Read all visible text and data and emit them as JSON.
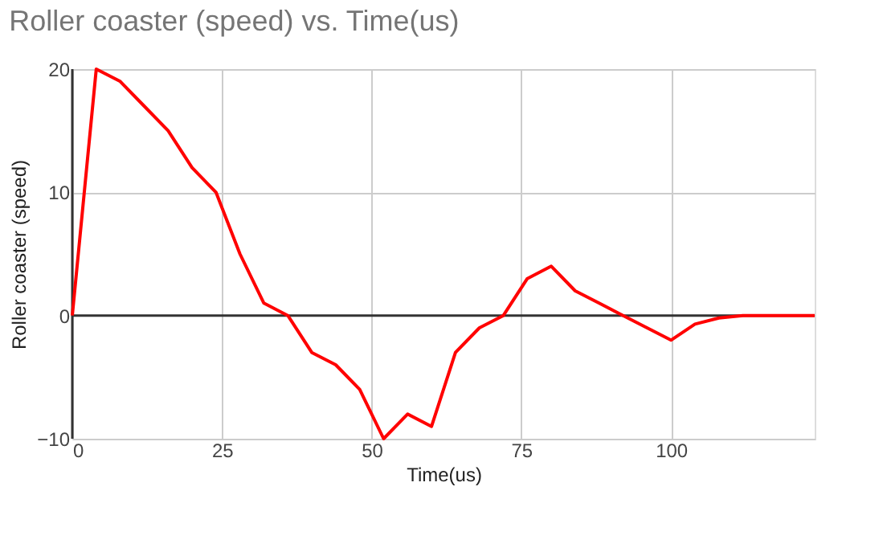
{
  "chart_data": {
    "type": "line",
    "title": "Roller coaster (speed) vs. Time(us)",
    "xlabel": "Time(us)",
    "ylabel": "Roller coaster (speed)",
    "x": [
      0,
      4,
      8,
      12,
      16,
      20,
      24,
      28,
      32,
      36,
      40,
      44,
      48,
      52,
      56,
      60,
      64,
      68,
      72,
      76,
      80,
      84,
      88,
      92,
      96,
      100,
      104,
      108,
      112,
      116,
      120,
      124
    ],
    "series": [
      {
        "color": "#ff0000",
        "values": [
          0,
          20,
          19,
          17,
          15,
          12,
          10,
          5,
          1,
          0,
          -3,
          -4,
          -6,
          -10,
          -8,
          -9,
          -3,
          -1,
          0,
          3,
          4,
          2,
          1,
          0,
          -1,
          -2,
          -0.7,
          -0.2,
          0,
          0,
          0,
          0
        ]
      }
    ],
    "xlim": [
      0,
      124
    ],
    "xticks": [
      0,
      25,
      50,
      75,
      100
    ],
    "ylim": [
      -10,
      20
    ],
    "yticks": [
      -10,
      0,
      10,
      20
    ],
    "grid": true,
    "marker": "none",
    "line_style": "solid"
  }
}
